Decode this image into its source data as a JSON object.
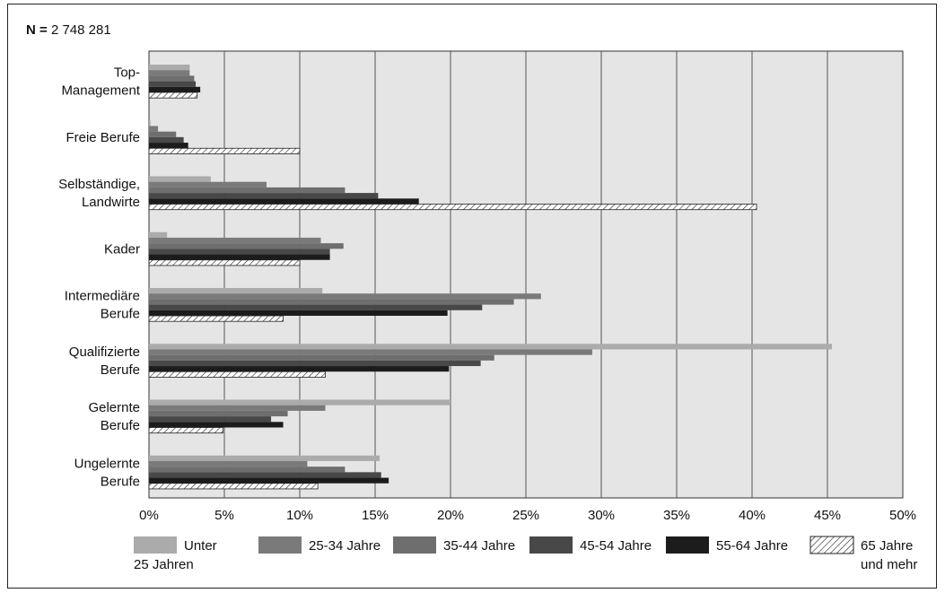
{
  "chart_data": {
    "type": "bar",
    "orientation": "horizontal",
    "note_label": "N =",
    "note_value": "2 748 281",
    "categories": [
      [
        "Top-",
        "Management"
      ],
      [
        "Freie Berufe"
      ],
      [
        "Selbständige,",
        "Landwirte"
      ],
      [
        "Kader"
      ],
      [
        "Intermediäre",
        "Berufe"
      ],
      [
        "Qualifizierte",
        "Berufe"
      ],
      [
        "Gelernte",
        "Berufe"
      ],
      [
        "Ungelernte",
        "Berufe"
      ]
    ],
    "series": [
      {
        "name": [
          "Unter",
          "25 Jahren"
        ],
        "color": "#ababab",
        "pattern": "solid",
        "values": [
          2.7,
          0.1,
          4.1,
          1.2,
          11.5,
          45.3,
          20.0,
          15.3
        ]
      },
      {
        "name": [
          "25-34 Jahre"
        ],
        "color": "#7a7a7a",
        "pattern": "solid",
        "values": [
          2.7,
          0.6,
          7.8,
          11.4,
          26.0,
          29.4,
          11.7,
          10.5
        ]
      },
      {
        "name": [
          "35-44 Jahre"
        ],
        "color": "#6e6e6e",
        "pattern": "solid",
        "values": [
          3.0,
          1.8,
          13.0,
          12.9,
          24.2,
          22.9,
          9.2,
          13.0
        ]
      },
      {
        "name": [
          "45-54 Jahre"
        ],
        "color": "#484848",
        "pattern": "solid",
        "values": [
          3.1,
          2.3,
          15.2,
          12.0,
          22.1,
          22.0,
          8.1,
          15.4
        ]
      },
      {
        "name": [
          "55-64 Jahre"
        ],
        "color": "#1c1c1c",
        "pattern": "solid",
        "values": [
          3.4,
          2.6,
          17.9,
          12.0,
          19.8,
          19.9,
          8.9,
          15.9
        ]
      },
      {
        "name": [
          "65 Jahre",
          "und mehr"
        ],
        "color": "#ffffff",
        "pattern": "hatch",
        "values": [
          3.2,
          10.0,
          40.3,
          10.0,
          8.9,
          11.7,
          4.9,
          11.2
        ]
      }
    ],
    "xlim": [
      0,
      50
    ],
    "xticks": [
      0,
      5,
      10,
      15,
      20,
      25,
      30,
      35,
      40,
      45,
      50
    ],
    "tick_suffix": "%",
    "grid": true,
    "legend_position": "bottom"
  }
}
